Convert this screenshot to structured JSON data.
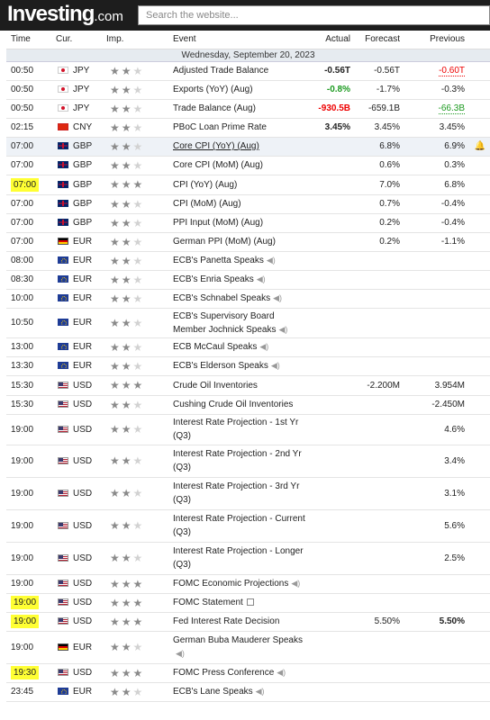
{
  "brand": {
    "name": "Investing",
    "domain": ".com"
  },
  "search": {
    "placeholder": "Search the website..."
  },
  "headers": {
    "time": "Time",
    "cur": "Cur.",
    "imp": "Imp.",
    "event": "Event",
    "actual": "Actual",
    "forecast": "Forecast",
    "previous": "Previous"
  },
  "date_label": "Wednesday, September 20, 2023",
  "icons": {
    "speaker": "speaker-icon",
    "document": "document-icon",
    "bell": "bell-alert-icon"
  },
  "rows": [
    {
      "time": "00:50",
      "flag": "jpy",
      "cur": "JPY",
      "imp": 2,
      "event": "Adjusted Trade Balance",
      "actual": "-0.56T",
      "actual_color": "",
      "forecast": "-0.56T",
      "previous": "-0.60T",
      "previous_color": "redu"
    },
    {
      "time": "00:50",
      "flag": "jpy",
      "cur": "JPY",
      "imp": 2,
      "event": "Exports (YoY) (Aug)",
      "actual": "-0.8%",
      "actual_color": "green",
      "forecast": "-1.7%",
      "previous": "-0.3%",
      "previous_color": ""
    },
    {
      "time": "00:50",
      "flag": "jpy",
      "cur": "JPY",
      "imp": 2,
      "event": "Trade Balance (Aug)",
      "actual": "-930.5B",
      "actual_color": "red",
      "forecast": "-659.1B",
      "previous": "-66.3B",
      "previous_color": "greenu"
    },
    {
      "time": "02:15",
      "flag": "cny",
      "cur": "CNY",
      "imp": 2,
      "event": "PBoC Loan Prime Rate",
      "actual": "3.45%",
      "actual_color": "",
      "forecast": "3.45%",
      "previous": "3.45%",
      "previous_color": ""
    },
    {
      "time": "07:00",
      "flag": "gbp",
      "cur": "GBP",
      "imp": 2,
      "event": "Core CPI (YoY) (Aug)",
      "actual": "",
      "forecast": "6.8%",
      "previous": "6.9%",
      "previous_color": "",
      "highlight": true,
      "underline": true,
      "bell": true
    },
    {
      "time": "07:00",
      "flag": "gbp",
      "cur": "GBP",
      "imp": 2,
      "event": "Core CPI (MoM) (Aug)",
      "actual": "",
      "forecast": "0.6%",
      "previous": "0.3%",
      "previous_color": ""
    },
    {
      "time": "07:00",
      "flag": "gbp",
      "cur": "GBP",
      "imp": 3,
      "event": "CPI (YoY) (Aug)",
      "actual": "",
      "forecast": "7.0%",
      "previous": "6.8%",
      "previous_color": "",
      "mark": true
    },
    {
      "time": "07:00",
      "flag": "gbp",
      "cur": "GBP",
      "imp": 2,
      "event": "CPI (MoM) (Aug)",
      "actual": "",
      "forecast": "0.7%",
      "previous": "-0.4%",
      "previous_color": ""
    },
    {
      "time": "07:00",
      "flag": "gbp",
      "cur": "GBP",
      "imp": 2,
      "event": "PPI Input (MoM) (Aug)",
      "actual": "",
      "forecast": "0.2%",
      "previous": "-0.4%",
      "previous_color": ""
    },
    {
      "time": "07:00",
      "flag": "deu",
      "cur": "EUR",
      "imp": 2,
      "event": "German PPI (MoM) (Aug)",
      "actual": "",
      "forecast": "0.2%",
      "previous": "-1.1%",
      "previous_color": ""
    },
    {
      "time": "08:00",
      "flag": "eur",
      "cur": "EUR",
      "imp": 2,
      "event": "ECB's Panetta Speaks",
      "speaker": true,
      "actual": "",
      "forecast": "",
      "previous": ""
    },
    {
      "time": "08:30",
      "flag": "eur",
      "cur": "EUR",
      "imp": 2,
      "event": "ECB's Enria Speaks",
      "speaker": true,
      "actual": "",
      "forecast": "",
      "previous": ""
    },
    {
      "time": "10:00",
      "flag": "eur",
      "cur": "EUR",
      "imp": 2,
      "event": "ECB's Schnabel Speaks",
      "speaker": true,
      "actual": "",
      "forecast": "",
      "previous": ""
    },
    {
      "time": "10:50",
      "flag": "eur",
      "cur": "EUR",
      "imp": 2,
      "event": "ECB's Supervisory Board Member Jochnick Speaks",
      "speaker": true,
      "actual": "",
      "forecast": "",
      "previous": "",
      "tall": true
    },
    {
      "time": "13:00",
      "flag": "eur",
      "cur": "EUR",
      "imp": 2,
      "event": "ECB McCaul Speaks",
      "speaker": true,
      "actual": "",
      "forecast": "",
      "previous": ""
    },
    {
      "time": "13:30",
      "flag": "eur",
      "cur": "EUR",
      "imp": 2,
      "event": "ECB's Elderson Speaks",
      "speaker": true,
      "actual": "",
      "forecast": "",
      "previous": ""
    },
    {
      "time": "15:30",
      "flag": "usd",
      "cur": "USD",
      "imp": 3,
      "event": "Crude Oil Inventories",
      "actual": "",
      "forecast": "-2.200M",
      "previous": "3.954M",
      "previous_color": ""
    },
    {
      "time": "15:30",
      "flag": "usd",
      "cur": "USD",
      "imp": 2,
      "event": "Cushing Crude Oil Inventories",
      "actual": "",
      "forecast": "",
      "previous": "-2.450M",
      "previous_color": ""
    },
    {
      "time": "19:00",
      "flag": "usd",
      "cur": "USD",
      "imp": 2,
      "event": "Interest Rate Projection - 1st Yr (Q3)",
      "actual": "",
      "forecast": "",
      "previous": "4.6%",
      "previous_color": "",
      "tall": true
    },
    {
      "time": "19:00",
      "flag": "usd",
      "cur": "USD",
      "imp": 2,
      "event": "Interest Rate Projection - 2nd Yr (Q3)",
      "actual": "",
      "forecast": "",
      "previous": "3.4%",
      "previous_color": "",
      "tall": true
    },
    {
      "time": "19:00",
      "flag": "usd",
      "cur": "USD",
      "imp": 2,
      "event": "Interest Rate Projection - 3rd Yr (Q3)",
      "actual": "",
      "forecast": "",
      "previous": "3.1%",
      "previous_color": "",
      "tall": true
    },
    {
      "time": "19:00",
      "flag": "usd",
      "cur": "USD",
      "imp": 2,
      "event": "Interest Rate Projection - Current (Q3)",
      "actual": "",
      "forecast": "",
      "previous": "5.6%",
      "previous_color": "",
      "tall": true
    },
    {
      "time": "19:00",
      "flag": "usd",
      "cur": "USD",
      "imp": 2,
      "event": "Interest Rate Projection - Longer (Q3)",
      "actual": "",
      "forecast": "",
      "previous": "2.5%",
      "previous_color": "",
      "tall": true
    },
    {
      "time": "19:00",
      "flag": "usd",
      "cur": "USD",
      "imp": 3,
      "event": "FOMC Economic Projections",
      "speaker": true,
      "actual": "",
      "forecast": "",
      "previous": ""
    },
    {
      "time": "19:00",
      "flag": "usd",
      "cur": "USD",
      "imp": 3,
      "event": "FOMC Statement",
      "document": true,
      "actual": "",
      "forecast": "",
      "previous": "",
      "mark": true
    },
    {
      "time": "19:00",
      "flag": "usd",
      "cur": "USD",
      "imp": 3,
      "event": "Fed Interest Rate Decision",
      "actual": "",
      "forecast": "5.50%",
      "previous": "5.50%",
      "previous_color": "",
      "mark": true,
      "bold_values": true
    },
    {
      "time": "19:00",
      "flag": "deu",
      "cur": "EUR",
      "imp": 2,
      "event": "German Buba Mauderer Speaks",
      "speaker": true,
      "actual": "",
      "forecast": "",
      "previous": "",
      "tall": true
    },
    {
      "time": "19:30",
      "flag": "usd",
      "cur": "USD",
      "imp": 3,
      "event": "FOMC Press Conference",
      "speaker": true,
      "actual": "",
      "forecast": "",
      "previous": "",
      "mark": true
    },
    {
      "time": "23:45",
      "flag": "eur",
      "cur": "EUR",
      "imp": 2,
      "event": "ECB's Lane Speaks",
      "speaker": true,
      "actual": "",
      "forecast": "",
      "previous": ""
    }
  ]
}
